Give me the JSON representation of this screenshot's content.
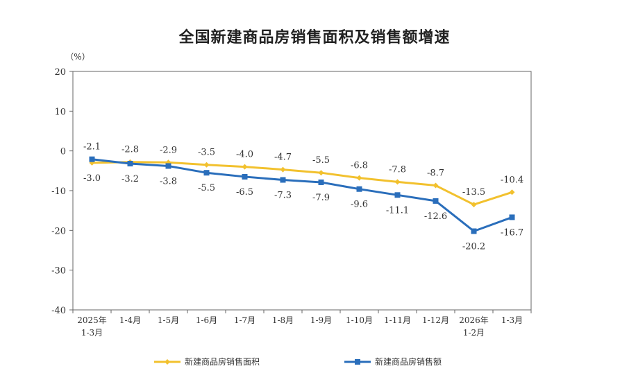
{
  "chart_data": {
    "type": "line",
    "title": "全国新建商品房销售面积及销售额增速",
    "ylabel": "（%）",
    "ylim": [
      -40,
      20
    ],
    "yticks": [
      20,
      10,
      0,
      -10,
      -20,
      -30,
      -40
    ],
    "categories": [
      [
        "2025年",
        "1-3月"
      ],
      [
        "1-4月"
      ],
      [
        "1-5月"
      ],
      [
        "1-6月"
      ],
      [
        "1-7月"
      ],
      [
        "1-8月"
      ],
      [
        "1-9月"
      ],
      [
        "1-10月"
      ],
      [
        "1-11月"
      ],
      [
        "1-12月"
      ],
      [
        "2026年",
        "1-2月"
      ],
      [
        "1-3月"
      ]
    ],
    "series": [
      {
        "name": "新建商品房销售面积",
        "color": "#F2C12E",
        "values": [
          -3.0,
          -2.8,
          -2.9,
          -3.5,
          -4.0,
          -4.7,
          -5.5,
          -6.8,
          -7.8,
          -8.7,
          -13.5,
          -10.4
        ],
        "label_position": "mixed"
      },
      {
        "name": "新建商品房销售额",
        "color": "#2A6EBB",
        "values": [
          -2.1,
          -3.2,
          -3.8,
          -5.5,
          -6.5,
          -7.3,
          -7.9,
          -9.6,
          -11.1,
          -12.6,
          -20.2,
          -16.7
        ]
      }
    ],
    "grid": false,
    "legend": "bottom"
  }
}
